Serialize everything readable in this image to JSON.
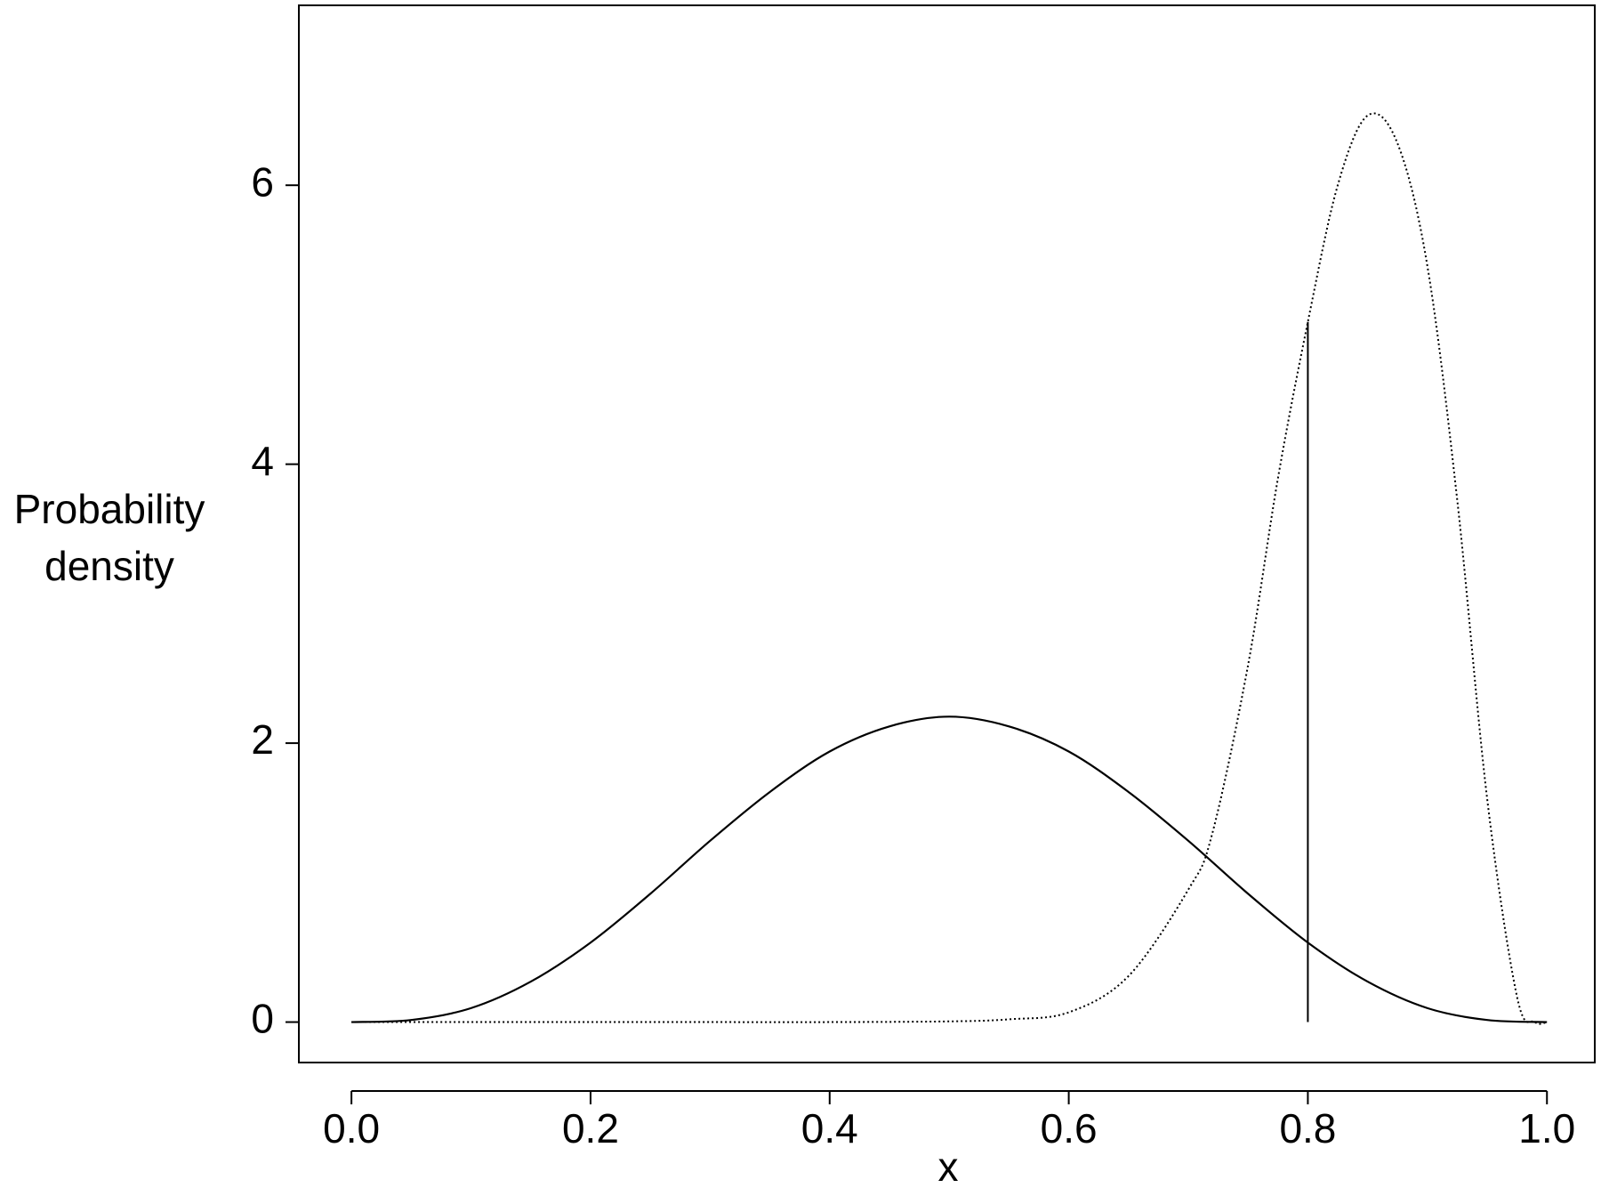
{
  "chart_data": {
    "type": "line",
    "xlabel": "x",
    "ylabel": "Probability density",
    "xlim": [
      -0.044,
      1.04
    ],
    "ylim": [
      -0.29,
      7.29
    ],
    "xticks": [
      {
        "value": 0,
        "label": "0.0"
      },
      0.2,
      0.4,
      0.6,
      0.8,
      {
        "value": 1,
        "label": "1.0"
      }
    ],
    "yticks": [
      0,
      2,
      4,
      6
    ],
    "series": [
      {
        "style": "solid",
        "color": "#000000",
        "x": [
          0,
          0.05,
          0.1,
          0.15,
          0.2,
          0.25,
          0.3,
          0.35,
          0.4,
          0.45,
          0.5,
          0.55,
          0.6,
          0.65,
          0.7,
          0.75,
          0.8,
          0.85,
          0.9,
          0.95,
          1
        ],
        "values": [
          0,
          0.015,
          0.1,
          0.29,
          0.57,
          0.92,
          1.3,
          1.65,
          1.94,
          2.12,
          2.19,
          2.12,
          1.94,
          1.65,
          1.3,
          0.92,
          0.57,
          0.29,
          0.1,
          0.015,
          0
        ]
      },
      {
        "style": "dotted",
        "color": "#000000",
        "x": [
          0,
          0.1,
          0.2,
          0.3,
          0.4,
          0.5,
          0.55,
          0.6,
          0.65,
          0.7,
          0.72,
          0.75,
          0.775,
          0.8,
          0.825,
          0.85,
          0.875,
          0.9,
          0.925,
          0.95,
          0.975,
          0.99,
          1
        ],
        "values": [
          0,
          0,
          0,
          0,
          0,
          0.005,
          0.02,
          0.07,
          0.33,
          0.95,
          1.35,
          2.56,
          3.9,
          5.02,
          6.0,
          6.5,
          6.3,
          5.42,
          3.74,
          1.6,
          0.18,
          0,
          0
        ]
      }
    ],
    "vline": {
      "x": 0.8,
      "ymax": 5.02
    }
  }
}
